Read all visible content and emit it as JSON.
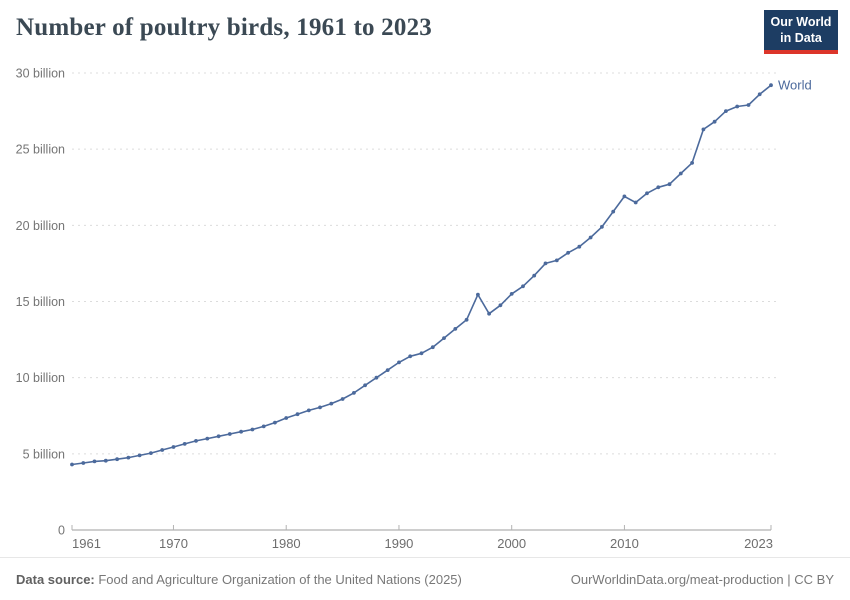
{
  "header": {
    "title": "Number of poultry birds, 1961 to 2023"
  },
  "logo": {
    "line1": "Our World",
    "line2": "in Data",
    "bg_color": "#1d3d63",
    "accent_color": "#dc352a"
  },
  "chart_data": {
    "type": "line",
    "title": "Number of poultry birds, 1961 to 2023",
    "unit": "billions of birds",
    "xlim": [
      1961,
      2023
    ],
    "ylim_billions": [
      0,
      30
    ],
    "grid": "horizontal dashed",
    "legend_position": "end-of-line label",
    "xticks": [
      1961,
      1970,
      1980,
      1990,
      2000,
      2010,
      2023
    ],
    "yticks": [
      {
        "value": 0,
        "label": "0"
      },
      {
        "value": 5,
        "label": "5 billion"
      },
      {
        "value": 10,
        "label": "10 billion"
      },
      {
        "value": 15,
        "label": "15 billion"
      },
      {
        "value": 20,
        "label": "20 billion"
      },
      {
        "value": 25,
        "label": "25 billion"
      },
      {
        "value": 30,
        "label": "30 billion"
      }
    ],
    "x": [
      1961,
      1962,
      1963,
      1964,
      1965,
      1966,
      1967,
      1968,
      1969,
      1970,
      1971,
      1972,
      1973,
      1974,
      1975,
      1976,
      1977,
      1978,
      1979,
      1980,
      1981,
      1982,
      1983,
      1984,
      1985,
      1986,
      1987,
      1988,
      1989,
      1990,
      1991,
      1992,
      1993,
      1994,
      1995,
      1996,
      1997,
      1998,
      1999,
      2000,
      2001,
      2002,
      2003,
      2004,
      2005,
      2006,
      2007,
      2008,
      2009,
      2010,
      2011,
      2012,
      2013,
      2014,
      2015,
      2016,
      2017,
      2018,
      2019,
      2020,
      2021,
      2022,
      2023
    ],
    "series": [
      {
        "name": "World",
        "color": "#4c6a9c",
        "values_billions": [
          4.3,
          4.4,
          4.5,
          4.55,
          4.65,
          4.75,
          4.9,
          5.05,
          5.25,
          5.45,
          5.65,
          5.85,
          6.0,
          6.15,
          6.3,
          6.45,
          6.6,
          6.8,
          7.05,
          7.35,
          7.6,
          7.85,
          8.05,
          8.3,
          8.6,
          9.0,
          9.5,
          10.0,
          10.5,
          11.0,
          11.4,
          11.6,
          12.0,
          12.6,
          13.2,
          13.8,
          15.45,
          14.2,
          14.75,
          15.5,
          16.0,
          16.7,
          17.5,
          17.7,
          18.2,
          18.6,
          19.2,
          19.9,
          20.9,
          21.9,
          21.5,
          22.1,
          22.5,
          22.7,
          23.4,
          24.1,
          26.3,
          26.8,
          27.5,
          27.8,
          27.9,
          28.6,
          29.2
        ]
      }
    ]
  },
  "footer": {
    "source_label": "Data source:",
    "source_text": " Food and Agriculture Organization of the United Nations (2025)",
    "citation_text": "OurWorldinData.org/meat-production | CC BY"
  }
}
